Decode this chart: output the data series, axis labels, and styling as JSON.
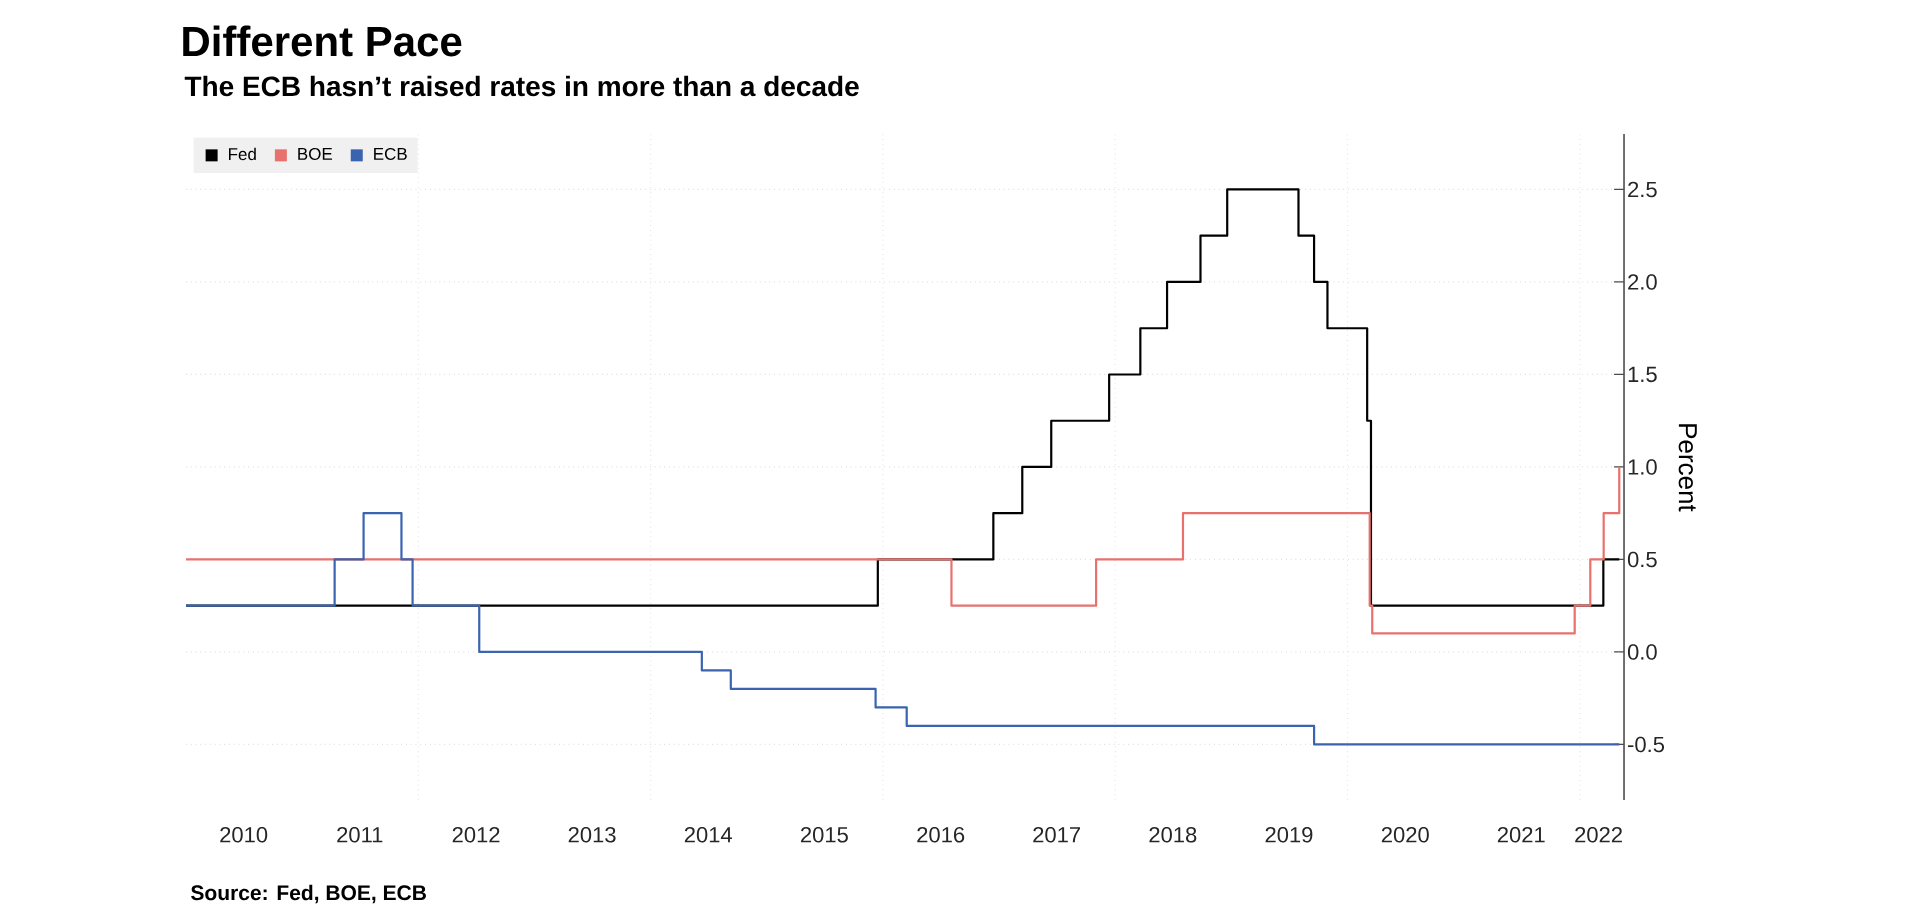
{
  "chart_data": {
    "type": "step",
    "title": "Different Pace",
    "subtitle": "The ECB hasn’t raised rates in more than a decade",
    "ylabel": "Percent",
    "annotations": [
      "Source: Fed, BOE, ECB"
    ],
    "series": [
      {
        "name": "Fed",
        "color": "#000000",
        "x": [
          "2010-01-01",
          "2015-12-16",
          "2016-12-14",
          "2017-03-15",
          "2017-06-14",
          "2017-12-13",
          "2018-03-21",
          "2018-06-13",
          "2018-09-26",
          "2018-12-19",
          "2019-07-31",
          "2019-09-18",
          "2019-10-30",
          "2020-03-03",
          "2020-03-15",
          "2022-03-16",
          "2022-05-05"
        ],
        "values": [
          0.25,
          0.5,
          0.75,
          1.0,
          1.25,
          1.5,
          1.75,
          2.0,
          2.25,
          2.5,
          2.25,
          2.0,
          1.75,
          1.25,
          0.25,
          0.5,
          0.5
        ]
      },
      {
        "name": "BOE",
        "color": "#e8706d",
        "x": [
          "2010-01-01",
          "2016-08-04",
          "2017-11-02",
          "2018-08-02",
          "2020-03-11",
          "2020-03-19",
          "2021-12-16",
          "2022-02-03",
          "2022-03-17",
          "2022-05-05"
        ],
        "values": [
          0.5,
          0.25,
          0.5,
          0.75,
          0.25,
          0.1,
          0.25,
          0.5,
          0.75,
          1.0
        ]
      },
      {
        "name": "ECB",
        "color": "#3a63b0",
        "x": [
          "2010-01-01",
          "2011-04-13",
          "2011-07-13",
          "2011-11-09",
          "2011-12-14",
          "2012-07-11",
          "2014-06-11",
          "2014-09-10",
          "2015-12-09",
          "2016-03-16",
          "2019-09-18",
          "2022-05-05"
        ],
        "values": [
          0.25,
          0.5,
          0.75,
          0.5,
          0.25,
          0.0,
          -0.1,
          -0.2,
          -0.3,
          -0.4,
          -0.5,
          -0.5
        ]
      }
    ],
    "xlim": [
      "2010-01-01",
      "2022-05-20"
    ],
    "xticks": [
      {
        "value": "2010-07-01",
        "label": "2010"
      },
      {
        "value": "2011-07-01",
        "label": "2011"
      },
      {
        "value": "2012-07-01",
        "label": "2012"
      },
      {
        "value": "2013-07-01",
        "label": "2013"
      },
      {
        "value": "2014-07-01",
        "label": "2014"
      },
      {
        "value": "2015-07-01",
        "label": "2015"
      },
      {
        "value": "2016-07-01",
        "label": "2016"
      },
      {
        "value": "2017-07-01",
        "label": "2017"
      },
      {
        "value": "2018-07-01",
        "label": "2018"
      },
      {
        "value": "2019-07-01",
        "label": "2019"
      },
      {
        "value": "2020-07-01",
        "label": "2020"
      },
      {
        "value": "2021-07-01",
        "label": "2021"
      },
      {
        "value": "2022-03-01",
        "label": "2022"
      },
      {
        "value": "2012-01-01",
        "label": null
      },
      {
        "value": "2014-01-01",
        "label": null
      },
      {
        "value": "2016-01-01",
        "label": null
      },
      {
        "value": "2018-01-01",
        "label": null
      },
      {
        "value": "2020-01-01",
        "label": null
      },
      {
        "value": "2022-01-01",
        "label": null
      }
    ],
    "ylim": [
      -0.8,
      2.8
    ],
    "yticks": [
      {
        "value": -0.5,
        "label": "-0.5"
      },
      {
        "value": 0,
        "label": "0.0"
      },
      {
        "value": 0.5,
        "label": "0.5"
      },
      {
        "value": 1.0,
        "label": "1.0"
      },
      {
        "value": 1.5,
        "label": "1.5"
      },
      {
        "value": 2.0,
        "label": "2.0"
      },
      {
        "value": 2.5,
        "label": "2.5"
      }
    ],
    "grid": true,
    "legend": "top left"
  }
}
